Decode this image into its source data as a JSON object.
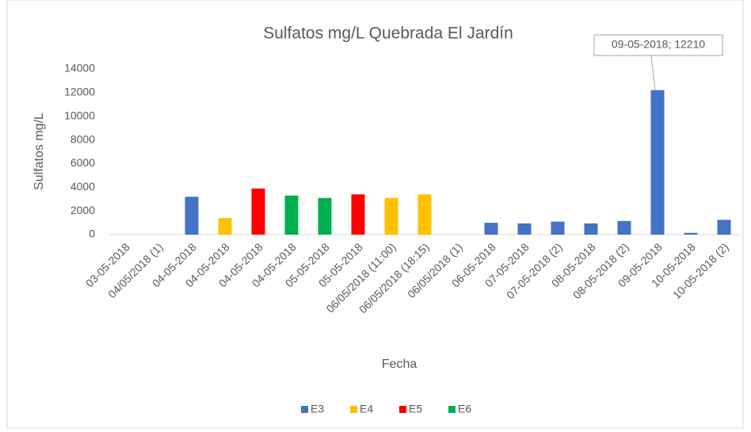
{
  "chart_data": {
    "type": "bar",
    "title": "Sulfatos mg/L Quebrada El Jardín",
    "x_label": "Fecha",
    "y_label": "Sulfatos mg/L",
    "categories": [
      "03-05-2018",
      "04/05/2018 (1)",
      "04-05-2018",
      "04-05-2018",
      "04-05-2018",
      "04-05-2018",
      "05-05-2018",
      "05-05-2018",
      "06/05/2018 (11:00)",
      "06/05/2018 (18:15)",
      "06/05/2018 (1)",
      "06-05-2018",
      "07-05-2018",
      "07-05-2018 (2)",
      "08-05-2018",
      "08-05-2018 (2)",
      "09-05-2018",
      "10-05-2018",
      "10-05-2018 (2)"
    ],
    "series": [
      {
        "name": "E3",
        "color": "#4472c4",
        "values": [
          null,
          null,
          3200,
          null,
          null,
          null,
          null,
          null,
          null,
          null,
          null,
          1000,
          950,
          1100,
          950,
          1150,
          12210,
          150,
          1250
        ],
        "value_labels": [
          null,
          null,
          null,
          null,
          null,
          null,
          null,
          null,
          null,
          null,
          null,
          null,
          null,
          null,
          null,
          null,
          "09-05-2018; 12210",
          null,
          null
        ]
      },
      {
        "name": "E4",
        "color": "#ffc000",
        "values": [
          null,
          null,
          null,
          1400,
          null,
          null,
          null,
          null,
          3100,
          3400,
          null,
          null,
          null,
          null,
          null,
          null,
          null,
          null,
          null
        ]
      },
      {
        "name": "E5",
        "color": "#ff0000",
        "values": [
          null,
          null,
          null,
          null,
          3900,
          null,
          null,
          3400,
          null,
          null,
          null,
          null,
          null,
          null,
          null,
          null,
          null,
          null,
          null
        ]
      },
      {
        "name": "E6",
        "color": "#00b050",
        "values": [
          null,
          null,
          null,
          null,
          null,
          3300,
          3100,
          null,
          null,
          null,
          null,
          null,
          null,
          null,
          null,
          null,
          null,
          null,
          null
        ]
      }
    ],
    "ylim": [
      0,
      14000
    ],
    "yticks": [
      0,
      2000,
      4000,
      6000,
      8000,
      10000,
      12000,
      14000
    ],
    "grid": false,
    "legend": "bottom"
  }
}
